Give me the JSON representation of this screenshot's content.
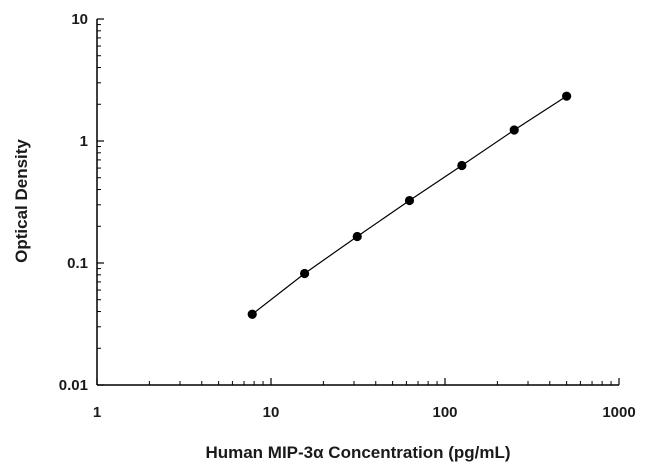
{
  "chart_data": {
    "type": "scatter",
    "title": "",
    "xlabel": "Human MIP-3α Concentration (pg/mL)",
    "ylabel": "Optical Density",
    "x_scale": "log",
    "y_scale": "log",
    "xlim": [
      1,
      1000
    ],
    "ylim": [
      0.01,
      10
    ],
    "x_ticks": [
      "1",
      "10",
      "100",
      "1000"
    ],
    "y_ticks": [
      "0.01",
      "0.1",
      "1",
      "10"
    ],
    "grid": false,
    "legend": "none",
    "series": [
      {
        "points": [
          {
            "x": 7.8,
            "y": 0.038
          },
          {
            "x": 15.6,
            "y": 0.082
          },
          {
            "x": 31.3,
            "y": 0.165
          },
          {
            "x": 62.5,
            "y": 0.325
          },
          {
            "x": 125,
            "y": 0.63
          },
          {
            "x": 250,
            "y": 1.23
          },
          {
            "x": 500,
            "y": 2.33
          }
        ],
        "fit_line": true
      }
    ],
    "colors": {
      "axis": "#000000",
      "marker": "#000000",
      "line": "#000000"
    }
  }
}
